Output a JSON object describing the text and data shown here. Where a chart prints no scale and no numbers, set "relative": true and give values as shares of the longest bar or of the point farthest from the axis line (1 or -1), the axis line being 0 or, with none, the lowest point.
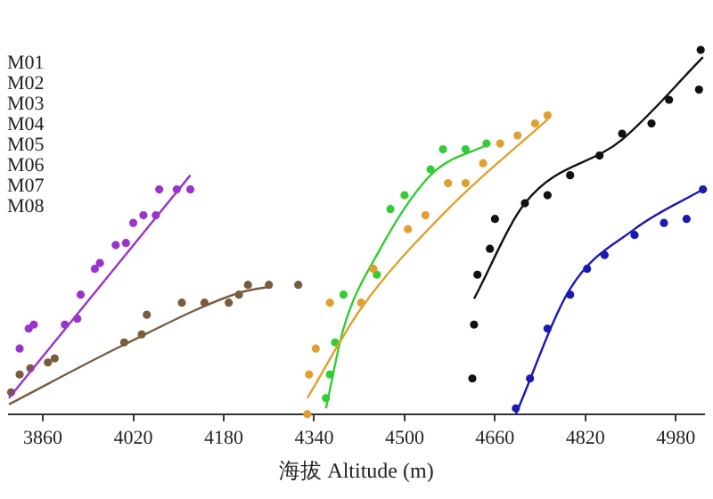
{
  "chart_data": {
    "type": "scatter",
    "xlabel": "海拔 Altitude (m)",
    "relative": true,
    "tick_labels": "x",
    "grid": false,
    "legend": false,
    "marker": "circle",
    "xlim": [
      3800,
      5030
    ],
    "xticks": [
      3860,
      4020,
      4180,
      4340,
      4500,
      4660,
      4820,
      4980
    ],
    "annotations": [
      "M01",
      "M02",
      "M03",
      "M04",
      "M05",
      "M06",
      "M07",
      "M08"
    ],
    "series": [
      {
        "color": "#9933cc",
        "x": [
          3819,
          3835,
          3844,
          3899,
          3921,
          3927,
          3952,
          3961,
          3989,
          4007,
          4020,
          4038,
          4060,
          4066,
          4097,
          4121
        ],
        "values": [
          0.18,
          0.235,
          0.246,
          0.246,
          0.262,
          0.328,
          0.399,
          0.415,
          0.464,
          0.47,
          0.525,
          0.546,
          0.546,
          0.617,
          0.617,
          0.617
        ]
      },
      {
        "type": "line",
        "marker": "none",
        "color": "#9933cc",
        "x": [
          3800,
          4121
        ],
        "values": [
          0.044,
          0.656
        ]
      },
      {
        "color": "#7a5c3e",
        "x": [
          3804,
          3819,
          3838,
          3869,
          3881,
          4004,
          4035,
          4044,
          4106,
          4146,
          4189,
          4207,
          4223,
          4260,
          4312
        ],
        "values": [
          0.06,
          0.109,
          0.126,
          0.142,
          0.153,
          0.197,
          0.219,
          0.273,
          0.306,
          0.306,
          0.306,
          0.328,
          0.355,
          0.355,
          0.355
        ]
      },
      {
        "type": "line",
        "marker": "none",
        "color": "#7a5c3e",
        "x": [
          3800,
          4004,
          4207,
          4260
        ],
        "values": [
          0.027,
          0.191,
          0.333,
          0.35
        ]
      },
      {
        "color": "#e0a030",
        "x": [
          4328,
          4331,
          4343,
          4368,
          4423,
          4445,
          4506,
          4537,
          4577,
          4608,
          4639,
          4669,
          4700,
          4731,
          4753
        ],
        "values": [
          0,
          0.109,
          0.18,
          0.306,
          0.306,
          0.399,
          0.508,
          0.546,
          0.634,
          0.634,
          0.689,
          0.743,
          0.765,
          0.798,
          0.82
        ]
      },
      {
        "type": "line",
        "marker": "none",
        "color": "#e0a030",
        "x": [
          4328,
          4423,
          4577,
          4753
        ],
        "values": [
          0.044,
          0.29,
          0.563,
          0.809
        ]
      },
      {
        "color": "#33cc33",
        "x": [
          4361,
          4368,
          4377,
          4392,
          4451,
          4475,
          4500,
          4546,
          4568,
          4608,
          4645
        ],
        "values": [
          0.044,
          0.109,
          0.197,
          0.328,
          0.383,
          0.563,
          0.601,
          0.672,
          0.727,
          0.727,
          0.743
        ]
      },
      {
        "type": "line",
        "marker": "none",
        "color": "#33cc33",
        "x": [
          4361,
          4392,
          4451,
          4546,
          4651
        ],
        "values": [
          0.016,
          0.235,
          0.437,
          0.656,
          0.743
        ]
      },
      {
        "color": "#111111",
        "x": [
          4620,
          4623,
          4629,
          4651,
          4660,
          4713,
          4753,
          4793,
          4845,
          4885,
          4937,
          4968,
          5021,
          5024
        ],
        "values": [
          0.098,
          0.246,
          0.383,
          0.454,
          0.536,
          0.579,
          0.601,
          0.656,
          0.71,
          0.77,
          0.798,
          0.863,
          0.891,
          1
        ]
      },
      {
        "type": "line",
        "marker": "none",
        "color": "#111111",
        "x": [
          4623,
          4713,
          4885,
          5028
        ],
        "values": [
          0.317,
          0.579,
          0.754,
          0.98
        ]
      },
      {
        "color": "#1a1ab3",
        "x": [
          4697,
          4722,
          4753,
          4793,
          4823,
          4854,
          4907,
          4959,
          4999,
          5028
        ],
        "values": [
          0.016,
          0.098,
          0.235,
          0.328,
          0.399,
          0.437,
          0.492,
          0.525,
          0.536,
          0.617
        ]
      },
      {
        "type": "line",
        "marker": "none",
        "color": "#1a1ab3",
        "x": [
          4697,
          4793,
          4907,
          5028
        ],
        "values": [
          0,
          0.344,
          0.508,
          0.617
        ]
      }
    ]
  }
}
